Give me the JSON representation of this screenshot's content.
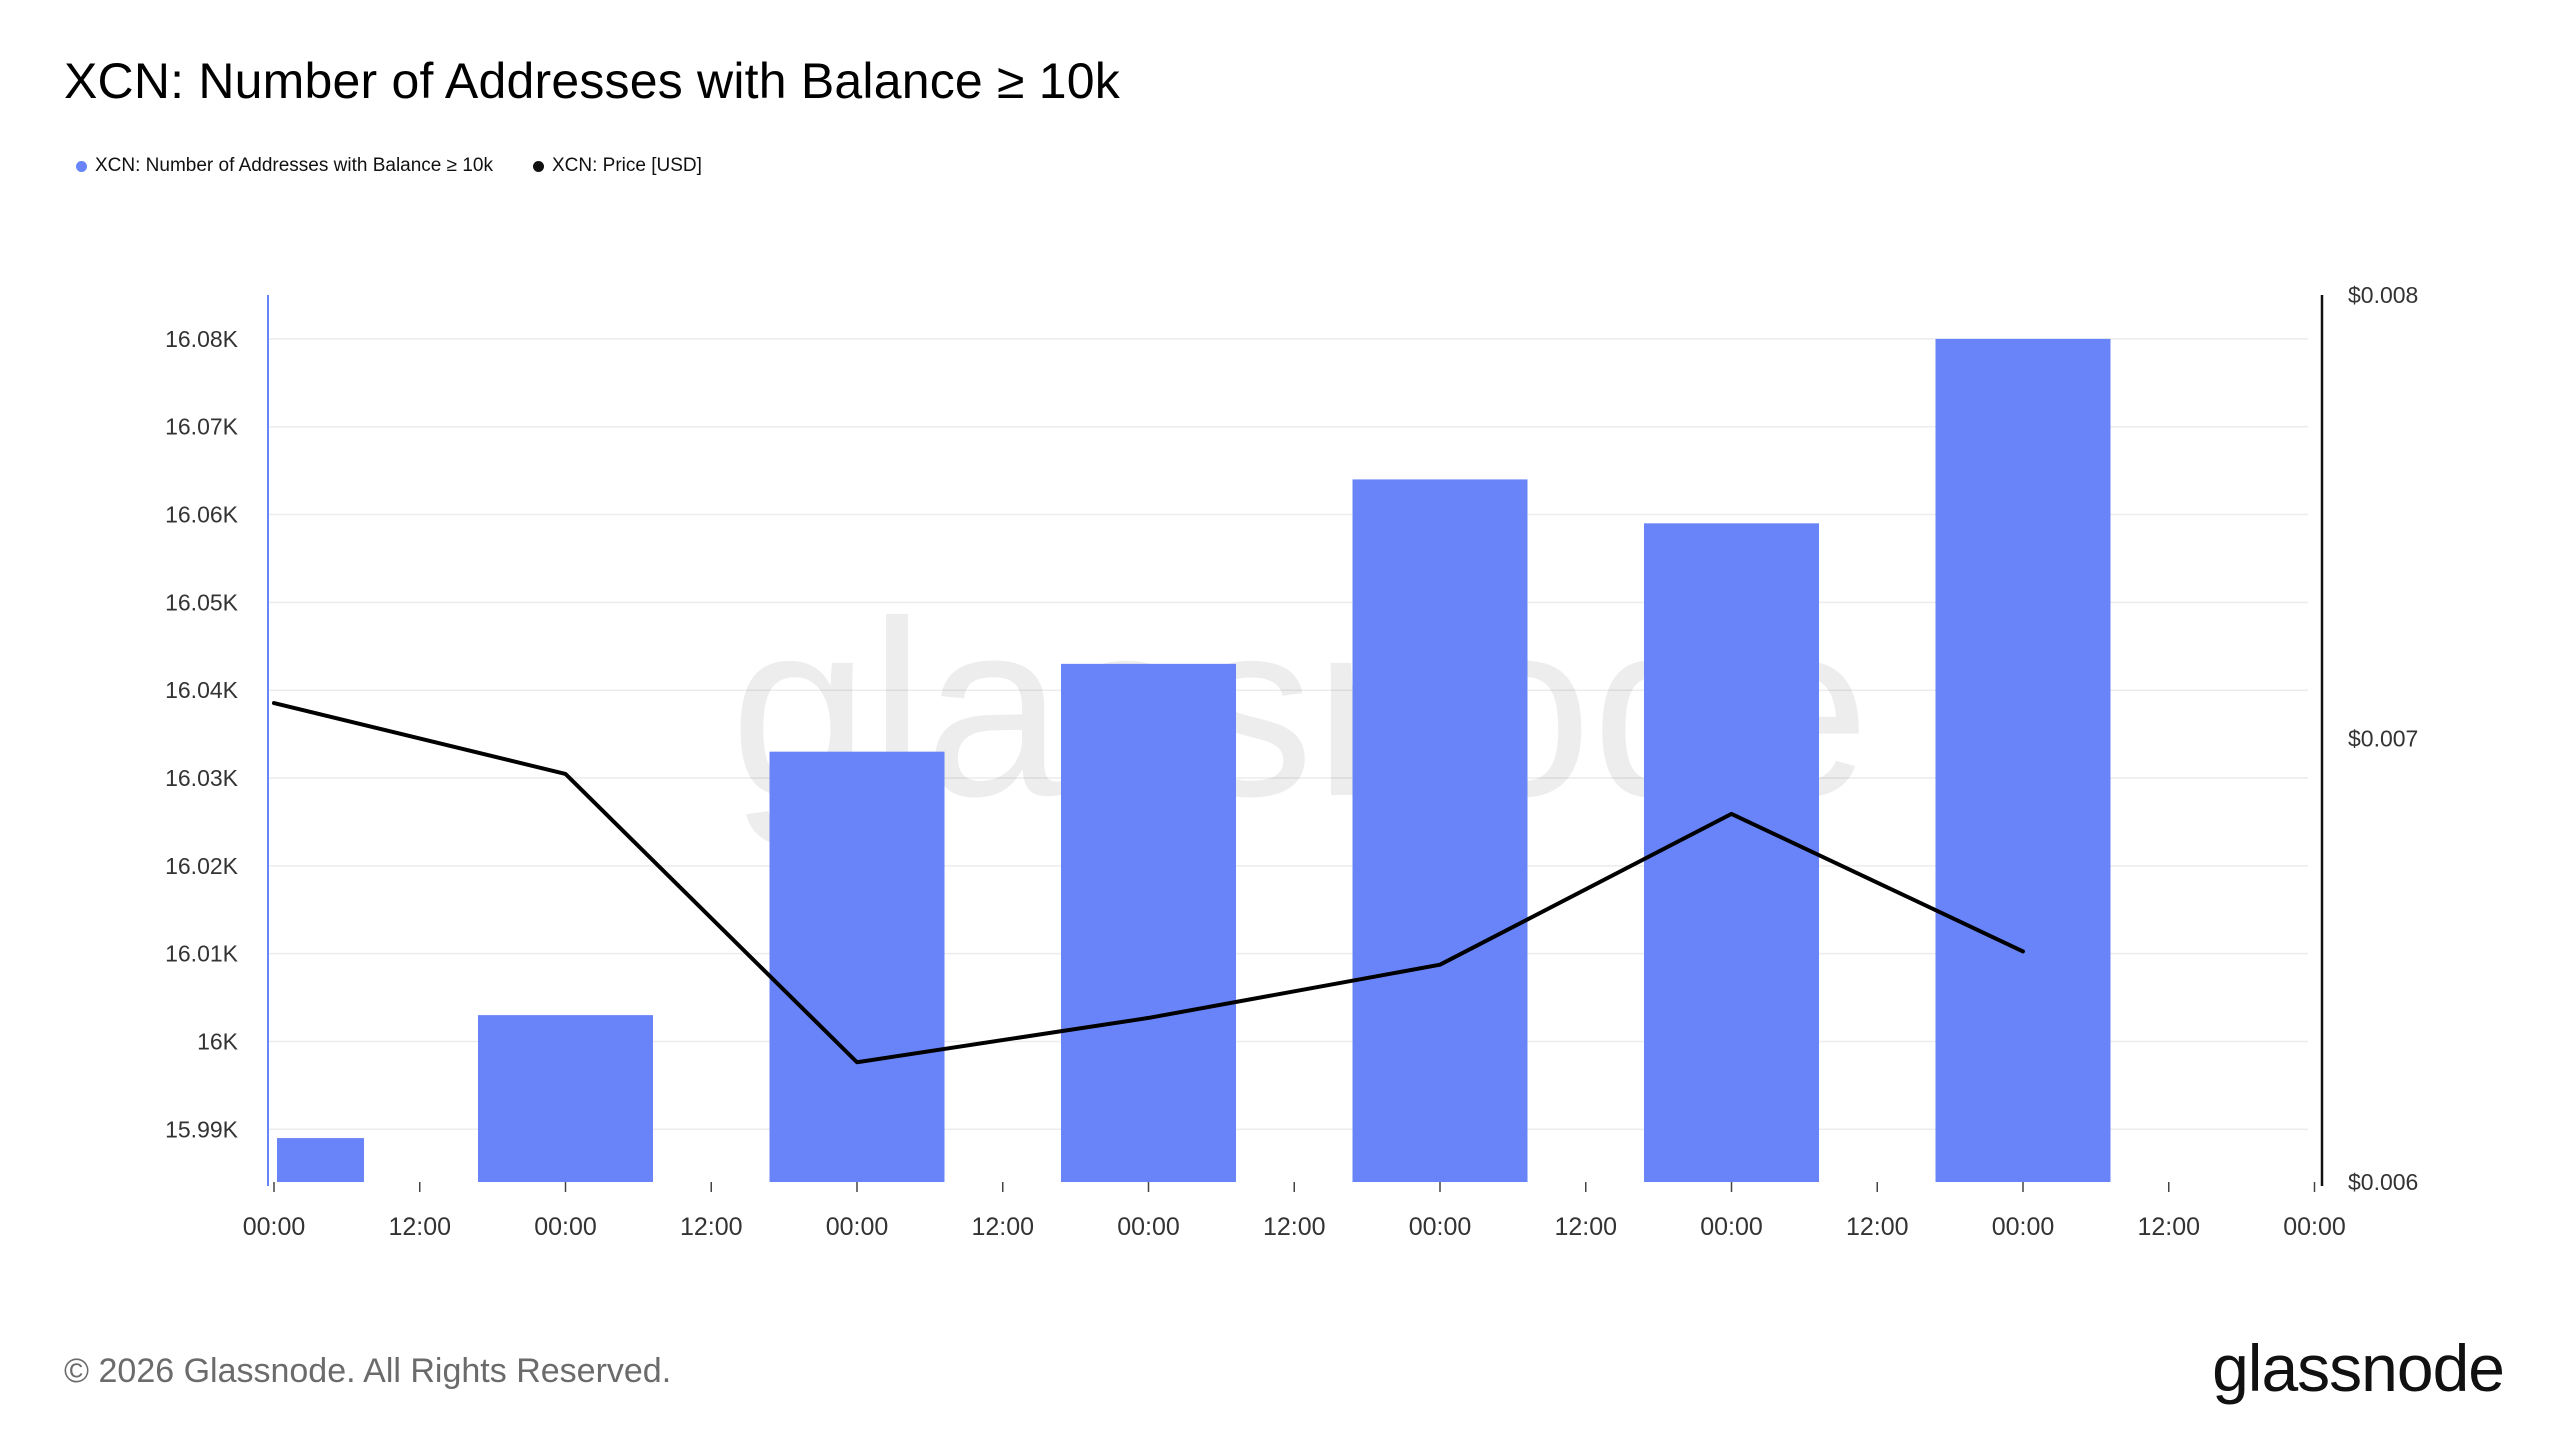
{
  "title": "XCN: Number of Addresses with Balance ≥ 10k",
  "legend": [
    {
      "label": "XCN: Number of Addresses with Balance ≥ 10k",
      "color": "#6884f8"
    },
    {
      "label": "XCN: Price [USD]",
      "color": "#111111"
    }
  ],
  "watermark": "glassnode",
  "footer": {
    "copyright": "© 2026 Glassnode. All Rights Reserved.",
    "brand": "glassnode"
  },
  "chart_data": {
    "type": "bar",
    "bar_color": "#6884f8",
    "line_color": "#000000",
    "x_tick_labels": [
      "00:00",
      "12:00",
      "00:00",
      "12:00",
      "00:00",
      "12:00",
      "00:00",
      "12:00",
      "00:00",
      "12:00",
      "00:00",
      "12:00",
      "00:00",
      "12:00",
      "00:00"
    ],
    "left_axis": {
      "ticks": [
        15990,
        16000,
        16010,
        16020,
        16030,
        16040,
        16050,
        16060,
        16070,
        16080
      ],
      "tick_labels": [
        "15.99K",
        "16K",
        "16.01K",
        "16.02K",
        "16.03K",
        "16.04K",
        "16.05K",
        "16.06K",
        "16.07K",
        "16.08K"
      ],
      "range": [
        15984,
        16085
      ]
    },
    "right_axis": {
      "ticks": [
        0.006,
        0.007,
        0.008
      ],
      "tick_labels": [
        "$0.006",
        "$0.007",
        "$0.008"
      ],
      "range": [
        0.006,
        0.008
      ]
    },
    "series": [
      {
        "name": "XCN: Number of Addresses with Balance ≥ 10k",
        "type": "bar",
        "axis": "left",
        "x_index": [
          0.15,
          1,
          2,
          3,
          4,
          5,
          6
        ],
        "values": [
          15989,
          16003,
          16033,
          16043,
          16064,
          16059,
          16080
        ]
      },
      {
        "name": "XCN: Price [USD]",
        "type": "line",
        "axis": "right",
        "x_index": [
          0,
          1,
          2,
          3,
          4,
          5,
          6
        ],
        "values": [
          0.00708,
          0.00692,
          0.00627,
          0.00637,
          0.00649,
          0.00683,
          0.00652
        ]
      }
    ]
  }
}
